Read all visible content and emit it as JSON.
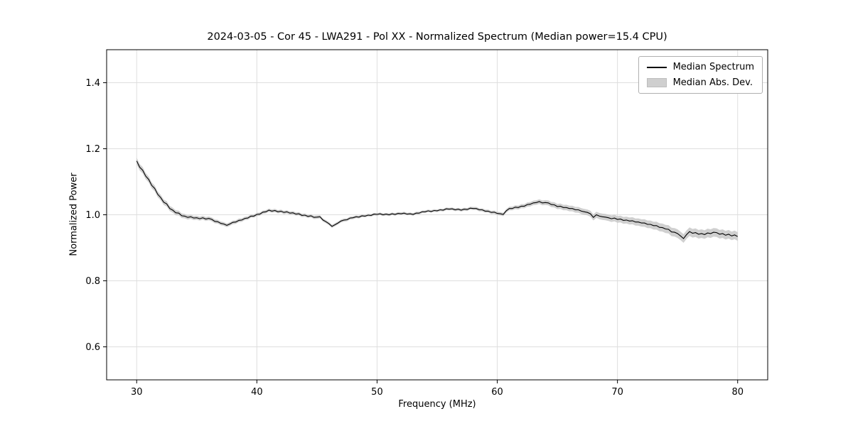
{
  "chart_data": {
    "type": "line",
    "title": "2024-03-05 - Cor 45 - LWA291 - Pol XX - Normalized Spectrum (Median power=15.4 CPU)",
    "xlabel": "Frequency (MHz)",
    "ylabel": "Normalized Power",
    "xlim": [
      27.5,
      82.5
    ],
    "ylim": [
      0.5,
      1.5
    ],
    "xticks": [
      30,
      40,
      50,
      60,
      70,
      80
    ],
    "yticks": [
      0.6,
      0.8,
      1.0,
      1.2,
      1.4
    ],
    "grid": true,
    "legend_position": "upper right",
    "legend": [
      "Median Spectrum",
      "Median Abs. Dev."
    ],
    "series": [
      {
        "name": "Median Spectrum",
        "x_start": 30,
        "x_step": 0.25,
        "values": [
          1.163,
          1.144,
          1.135,
          1.117,
          1.107,
          1.089,
          1.08,
          1.062,
          1.052,
          1.038,
          1.033,
          1.019,
          1.014,
          1.006,
          1.005,
          0.997,
          0.996,
          0.992,
          0.994,
          0.99,
          0.991,
          0.988,
          0.991,
          0.987,
          0.989,
          0.986,
          0.98,
          0.979,
          0.974,
          0.972,
          0.968,
          0.972,
          0.977,
          0.978,
          0.983,
          0.984,
          0.989,
          0.99,
          0.996,
          0.996,
          1.001,
          1.002,
          1.008,
          1.009,
          1.014,
          1.011,
          1.013,
          1.009,
          1.011,
          1.007,
          1.009,
          1.005,
          1.006,
          1.002,
          1.003,
          0.998,
          0.999,
          0.995,
          0.997,
          0.992,
          0.993,
          0.994,
          0.984,
          0.979,
          0.973,
          0.965,
          0.97,
          0.975,
          0.981,
          0.984,
          0.985,
          0.99,
          0.991,
          0.994,
          0.993,
          0.997,
          0.996,
          0.999,
          0.998,
          1.002,
          1.001,
          1.003,
          1.0,
          1.002,
          1.0,
          1.003,
          1.001,
          1.004,
          1.003,
          1.005,
          1.002,
          1.003,
          1.001,
          1.005,
          1.005,
          1.009,
          1.009,
          1.012,
          1.01,
          1.013,
          1.012,
          1.015,
          1.014,
          1.018,
          1.017,
          1.018,
          1.015,
          1.017,
          1.014,
          1.017,
          1.016,
          1.02,
          1.019,
          1.019,
          1.015,
          1.015,
          1.011,
          1.011,
          1.007,
          1.008,
          1.004,
          1.003,
          1.001,
          1.012,
          1.019,
          1.019,
          1.023,
          1.022,
          1.026,
          1.026,
          1.031,
          1.032,
          1.036,
          1.037,
          1.04,
          1.036,
          1.037,
          1.036,
          1.031,
          1.03,
          1.025,
          1.026,
          1.022,
          1.022,
          1.019,
          1.019,
          1.015,
          1.015,
          1.011,
          1.009,
          1.007,
          1.003,
          0.992,
          1.0,
          0.996,
          0.994,
          0.993,
          0.991,
          0.988,
          0.99,
          0.986,
          0.987,
          0.983,
          0.984,
          0.981,
          0.982,
          0.978,
          0.978,
          0.975,
          0.975,
          0.971,
          0.971,
          0.967,
          0.967,
          0.962,
          0.961,
          0.957,
          0.956,
          0.948,
          0.947,
          0.943,
          0.936,
          0.928,
          0.94,
          0.949,
          0.944,
          0.946,
          0.941,
          0.943,
          0.94,
          0.945,
          0.943,
          0.947,
          0.946,
          0.941,
          0.943,
          0.938,
          0.941,
          0.936,
          0.939,
          0.934
        ]
      }
    ],
    "band": {
      "name": "Median Abs. Dev.",
      "x": [
        30,
        35,
        40,
        45,
        50,
        55,
        60,
        65,
        70,
        75,
        80
      ],
      "half_width": [
        0.01,
        0.006,
        0.005,
        0.005,
        0.004,
        0.004,
        0.005,
        0.008,
        0.01,
        0.013,
        0.013
      ]
    },
    "colors": {
      "line": "#000000",
      "band": "#c8c8c8",
      "grid": "#dedede",
      "frame": "#000000",
      "background": "#ffffff"
    }
  }
}
